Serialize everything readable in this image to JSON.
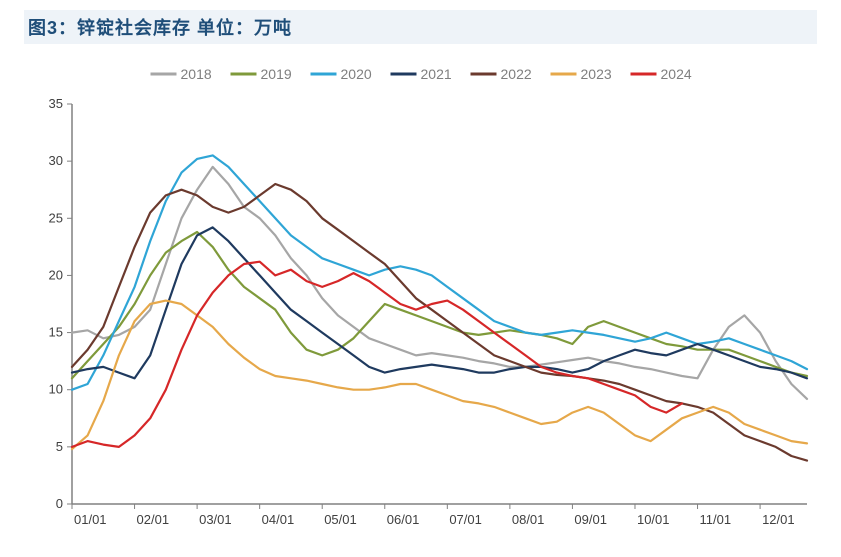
{
  "title": "图3：锌锭社会库存 单位：万吨",
  "title_color": "#1f4e79",
  "title_bg": "#eef3f8",
  "chart": {
    "type": "line",
    "background_color": "#ffffff",
    "axis_color": "#404040",
    "axis_line_color": "#808080",
    "tick_font_size": 13,
    "legend_font_size": 14,
    "legend_text_color": "#7f7f7f",
    "line_width": 2.2,
    "y_axis": {
      "min": 0,
      "max": 35,
      "tick_step": 5,
      "ticks": [
        0,
        5,
        10,
        15,
        20,
        25,
        30,
        35
      ]
    },
    "x_axis": {
      "labels": [
        "01/01",
        "02/01",
        "03/01",
        "04/01",
        "05/01",
        "06/01",
        "07/01",
        "08/01",
        "09/01",
        "10/01",
        "11/01",
        "12/01"
      ],
      "points_per_interval": 4
    },
    "series": [
      {
        "name": "2018",
        "color": "#a6a6a6",
        "values": [
          15.0,
          15.2,
          14.5,
          14.8,
          15.5,
          17.0,
          21.0,
          25.0,
          27.5,
          29.5,
          28.0,
          26.0,
          25.0,
          23.5,
          21.5,
          20.0,
          18.0,
          16.5,
          15.5,
          14.5,
          14.0,
          13.5,
          13.0,
          13.2,
          13.0,
          12.8,
          12.5,
          12.3,
          12.0,
          12.0,
          12.2,
          12.4,
          12.6,
          12.8,
          12.5,
          12.3,
          12.0,
          11.8,
          11.5,
          11.2,
          11.0,
          13.5,
          15.5,
          16.5,
          15.0,
          12.5,
          10.5,
          9.2
        ]
      },
      {
        "name": "2019",
        "color": "#7f9a3b",
        "values": [
          11.0,
          12.5,
          14.0,
          15.5,
          17.5,
          20.0,
          22.0,
          23.0,
          23.8,
          22.5,
          20.5,
          19.0,
          18.0,
          17.0,
          15.0,
          13.5,
          13.0,
          13.5,
          14.5,
          16.0,
          17.5,
          17.0,
          16.5,
          16.0,
          15.5,
          15.0,
          14.8,
          15.0,
          15.2,
          15.0,
          14.8,
          14.5,
          14.0,
          15.5,
          16.0,
          15.5,
          15.0,
          14.5,
          14.0,
          13.8,
          13.5,
          13.5,
          13.5,
          13.0,
          12.5,
          12.0,
          11.5,
          11.2
        ]
      },
      {
        "name": "2020",
        "color": "#2fa5d6",
        "values": [
          10.0,
          10.5,
          13.0,
          16.0,
          19.0,
          23.0,
          26.5,
          29.0,
          30.2,
          30.5,
          29.5,
          28.0,
          26.5,
          25.0,
          23.5,
          22.5,
          21.5,
          21.0,
          20.5,
          20.0,
          20.5,
          20.8,
          20.5,
          20.0,
          19.0,
          18.0,
          17.0,
          16.0,
          15.5,
          15.0,
          14.8,
          15.0,
          15.2,
          15.0,
          14.8,
          14.5,
          14.2,
          14.5,
          15.0,
          14.5,
          14.0,
          14.2,
          14.5,
          14.0,
          13.5,
          13.0,
          12.5,
          11.8
        ]
      },
      {
        "name": "2021",
        "color": "#1f3a5f",
        "values": [
          11.5,
          11.8,
          12.0,
          11.5,
          11.0,
          13.0,
          17.0,
          21.0,
          23.5,
          24.2,
          23.0,
          21.5,
          20.0,
          18.5,
          17.0,
          16.0,
          15.0,
          14.0,
          13.0,
          12.0,
          11.5,
          11.8,
          12.0,
          12.2,
          12.0,
          11.8,
          11.5,
          11.5,
          11.8,
          12.0,
          12.0,
          11.8,
          11.5,
          11.8,
          12.5,
          13.0,
          13.5,
          13.2,
          13.0,
          13.5,
          14.0,
          13.5,
          13.0,
          12.5,
          12.0,
          11.8,
          11.5,
          11.0
        ]
      },
      {
        "name": "2022",
        "color": "#6b3a2e",
        "values": [
          12.0,
          13.5,
          15.5,
          19.0,
          22.5,
          25.5,
          27.0,
          27.5,
          27.0,
          26.0,
          25.5,
          26.0,
          27.0,
          28.0,
          27.5,
          26.5,
          25.0,
          24.0,
          23.0,
          22.0,
          21.0,
          19.5,
          18.0,
          17.0,
          16.0,
          15.0,
          14.0,
          13.0,
          12.5,
          12.0,
          11.5,
          11.3,
          11.2,
          11.0,
          10.8,
          10.5,
          10.0,
          9.5,
          9.0,
          8.8,
          8.5,
          8.0,
          7.0,
          6.0,
          5.5,
          5.0,
          4.2,
          3.8
        ]
      },
      {
        "name": "2023",
        "color": "#e6a84a",
        "values": [
          4.8,
          6.0,
          9.0,
          13.0,
          16.0,
          17.5,
          17.8,
          17.5,
          16.5,
          15.5,
          14.0,
          12.8,
          11.8,
          11.2,
          11.0,
          10.8,
          10.5,
          10.2,
          10.0,
          10.0,
          10.2,
          10.5,
          10.5,
          10.0,
          9.5,
          9.0,
          8.8,
          8.5,
          8.0,
          7.5,
          7.0,
          7.2,
          8.0,
          8.5,
          8.0,
          7.0,
          6.0,
          5.5,
          6.5,
          7.5,
          8.0,
          8.5,
          8.0,
          7.0,
          6.5,
          6.0,
          5.5,
          5.3
        ]
      },
      {
        "name": "2024",
        "color": "#d62728",
        "values": [
          5.0,
          5.5,
          5.2,
          5.0,
          6.0,
          7.5,
          10.0,
          13.5,
          16.5,
          18.5,
          20.0,
          21.0,
          21.2,
          20.0,
          20.5,
          19.5,
          19.0,
          19.5,
          20.2,
          19.5,
          18.5,
          17.5,
          17.0,
          17.5,
          17.8,
          17.0,
          16.0,
          15.0,
          14.0,
          13.0,
          12.0,
          11.5,
          11.2,
          11.0,
          10.5,
          10.0,
          9.5,
          8.5,
          8.0,
          8.8
        ]
      }
    ]
  }
}
